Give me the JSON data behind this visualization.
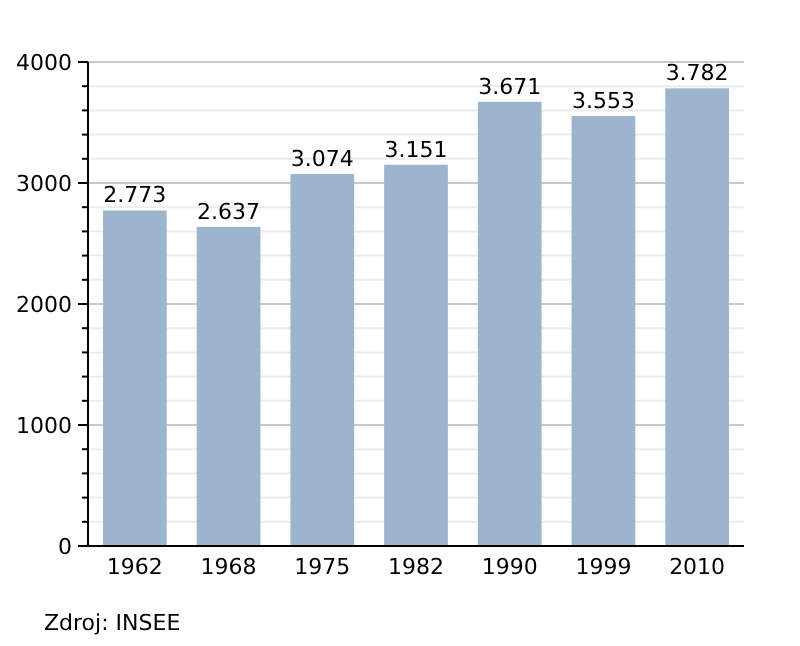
{
  "chart_data": {
    "type": "bar",
    "categories": [
      "1962",
      "1968",
      "1975",
      "1982",
      "1990",
      "1999",
      "2010"
    ],
    "values": [
      2773,
      2637,
      3074,
      3151,
      3671,
      3553,
      3782
    ],
    "value_labels": [
      "2.773",
      "2.637",
      "3.074",
      "3.151",
      "3.671",
      "3.553",
      "3.782"
    ],
    "color": "#9cb4cc",
    "ylim": [
      0,
      4000
    ],
    "yticks": [
      0,
      {
        "value": 200,
        "label": null
      },
      {
        "value": 400,
        "label": null
      },
      {
        "value": 600,
        "label": null
      },
      {
        "value": 800,
        "label": null
      },
      1000,
      {
        "value": 1200,
        "label": null
      },
      {
        "value": 1400,
        "label": null
      },
      {
        "value": 1600,
        "label": null
      },
      {
        "value": 1800,
        "label": null
      },
      2000,
      {
        "value": 2200,
        "label": null
      },
      {
        "value": 2400,
        "label": null
      },
      {
        "value": 2600,
        "label": null
      },
      {
        "value": 2800,
        "label": null
      },
      3000,
      {
        "value": 3200,
        "label": null
      },
      {
        "value": 3400,
        "label": null
      },
      {
        "value": 3600,
        "label": null
      },
      {
        "value": 3800,
        "label": null
      },
      4000
    ],
    "grid": "y",
    "annotations": [
      "Zdroj: INSEE"
    ]
  }
}
